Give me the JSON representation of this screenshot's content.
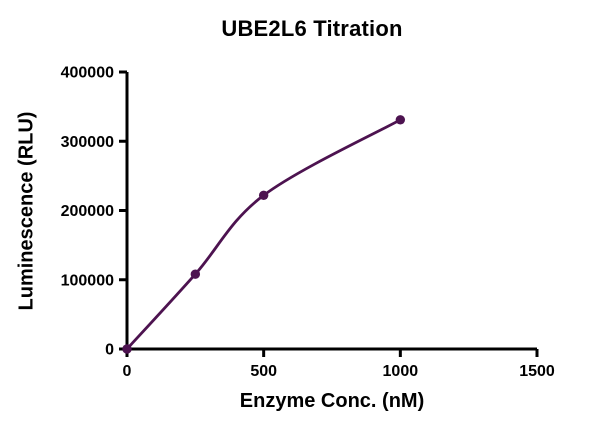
{
  "chart_data": {
    "type": "scatter",
    "title": "UBE2L6 Titration",
    "xlabel": "Enzyme Conc. (nM)",
    "ylabel": "Luminescence (RLU)",
    "xlim": [
      0,
      1500
    ],
    "ylim": [
      0,
      400000
    ],
    "x_ticks": [
      0,
      500,
      1000,
      1500
    ],
    "y_ticks": [
      0,
      100000,
      200000,
      300000,
      400000
    ],
    "points": {
      "x": [
        0,
        250,
        500,
        1000
      ],
      "y": [
        0,
        108000,
        222000,
        331000
      ]
    },
    "curve": {
      "style": "smooth-saturation-fit-through-points",
      "x_start": 0,
      "x_end": 1000
    },
    "marker_color": "#4D1350",
    "line_color": "#4D1350",
    "axis_color": "#000000",
    "background_color": "#FFFFFF",
    "grid": false,
    "legend": "none"
  }
}
